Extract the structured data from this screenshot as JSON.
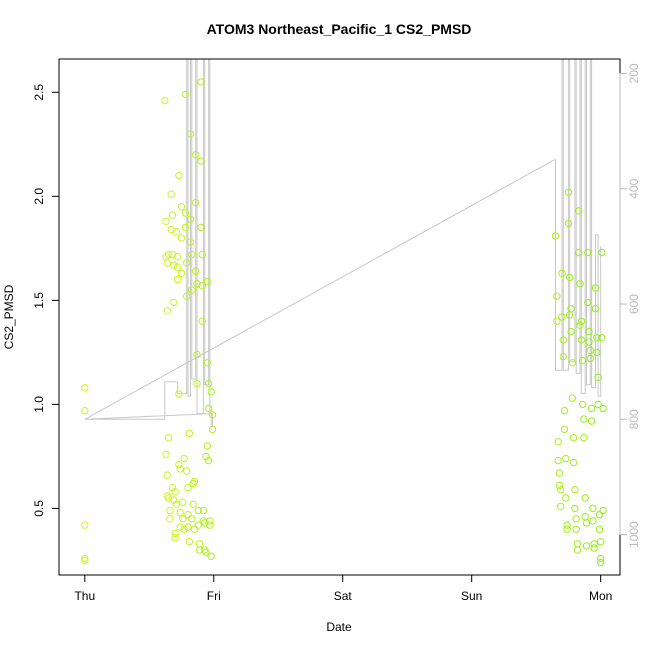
{
  "chart_data": {
    "type": "scatter",
    "title": "ATOM3 Northeast_Pacific_1 CS2_PMSD",
    "xlabel": "Date",
    "ylabel": "CS2_PMSD",
    "x_ticks": [
      {
        "label": "Thu",
        "value": 0
      },
      {
        "label": "Fri",
        "value": 1
      },
      {
        "label": "Sat",
        "value": 2
      },
      {
        "label": "Sun",
        "value": 3
      },
      {
        "label": "Mon",
        "value": 4
      }
    ],
    "xlim": [
      -0.2,
      4.15
    ],
    "ylim": [
      0.18,
      2.66
    ],
    "y_ticks": [
      0.5,
      1.0,
      1.5,
      2.0,
      2.5
    ],
    "y_tick_labels": [
      "0.5",
      "1.0",
      "1.5",
      "2.0",
      "2.5"
    ],
    "right_axis": {
      "label": "",
      "ylim": [
        1070,
        175
      ],
      "ticks": [
        200,
        400,
        600,
        800,
        1000
      ],
      "tick_labels": [
        "200",
        "400",
        "600",
        "800",
        "1000"
      ],
      "color": "#bbbbbb"
    },
    "grid": false,
    "legend": "none",
    "colors": {
      "point_start": "#d4f51f",
      "point_end": "#8ff015",
      "line": "#c8c8c8"
    },
    "series": [
      {
        "points": [
          [
            0.0,
            0.26
          ],
          [
            0.0,
            0.25
          ],
          [
            0.0,
            0.42
          ],
          [
            0.0,
            0.97
          ],
          [
            0.0,
            1.08
          ],
          [
            0.62,
            2.46
          ],
          [
            0.63,
            1.88
          ],
          [
            0.63,
            1.71
          ],
          [
            0.64,
            1.68
          ],
          [
            0.64,
            1.45
          ],
          [
            0.65,
            1.72
          ],
          [
            0.65,
            0.84
          ],
          [
            0.63,
            0.76
          ],
          [
            0.64,
            0.66
          ],
          [
            0.64,
            0.56
          ],
          [
            0.65,
            0.55
          ],
          [
            0.66,
            0.49
          ],
          [
            0.66,
            0.45
          ],
          [
            0.67,
            2.01
          ],
          [
            0.67,
            1.84
          ],
          [
            0.68,
            1.91
          ],
          [
            0.68,
            1.72
          ],
          [
            0.69,
            1.67
          ],
          [
            0.69,
            1.49
          ],
          [
            0.68,
            0.6
          ],
          [
            0.69,
            0.54
          ],
          [
            0.7,
            0.38
          ],
          [
            0.7,
            0.36
          ],
          [
            0.7,
            0.58
          ],
          [
            0.71,
            0.52
          ],
          [
            0.71,
            1.83
          ],
          [
            0.72,
            1.71
          ],
          [
            0.72,
            1.66
          ],
          [
            0.72,
            1.6
          ],
          [
            0.73,
            2.1
          ],
          [
            0.73,
            1.05
          ],
          [
            0.73,
            0.71
          ],
          [
            0.74,
            0.69
          ],
          [
            0.74,
            0.48
          ],
          [
            0.74,
            0.41
          ],
          [
            0.75,
            1.95
          ],
          [
            0.75,
            1.8
          ],
          [
            0.75,
            1.63
          ],
          [
            0.76,
            0.53
          ],
          [
            0.76,
            0.45
          ],
          [
            0.77,
            0.4
          ],
          [
            0.77,
            0.74
          ],
          [
            0.78,
            2.49
          ],
          [
            0.78,
            1.92
          ],
          [
            0.78,
            1.85
          ],
          [
            0.79,
            1.68
          ],
          [
            0.79,
            1.52
          ],
          [
            0.79,
            0.68
          ],
          [
            0.8,
            0.6
          ],
          [
            0.8,
            0.47
          ],
          [
            0.8,
            0.41
          ],
          [
            0.81,
            0.86
          ],
          [
            0.81,
            0.34
          ],
          [
            0.82,
            2.3
          ],
          [
            0.82,
            1.89
          ],
          [
            0.82,
            1.78
          ],
          [
            0.83,
            1.72
          ],
          [
            0.83,
            1.55
          ],
          [
            0.83,
            0.45
          ],
          [
            0.84,
            0.52
          ],
          [
            0.84,
            0.62
          ],
          [
            0.85,
            0.63
          ],
          [
            0.85,
            0.4
          ],
          [
            0.86,
            2.2
          ],
          [
            0.86,
            1.97
          ],
          [
            0.86,
            1.64
          ],
          [
            0.87,
            1.58
          ],
          [
            0.87,
            1.24
          ],
          [
            0.87,
            1.1
          ],
          [
            0.88,
            0.49
          ],
          [
            0.88,
            0.42
          ],
          [
            0.89,
            0.33
          ],
          [
            0.89,
            0.3
          ],
          [
            0.9,
            2.55
          ],
          [
            0.9,
            2.17
          ],
          [
            0.9,
            1.85
          ],
          [
            0.91,
            1.72
          ],
          [
            0.91,
            1.57
          ],
          [
            0.91,
            1.4
          ],
          [
            0.92,
            0.49
          ],
          [
            0.92,
            0.44
          ],
          [
            0.93,
            0.43
          ],
          [
            0.93,
            0.3
          ],
          [
            0.94,
            0.29
          ],
          [
            0.94,
            0.75
          ],
          [
            0.95,
            1.59
          ],
          [
            0.95,
            1.2
          ],
          [
            0.96,
            1.1
          ],
          [
            0.96,
            0.98
          ],
          [
            0.97,
            0.44
          ],
          [
            0.97,
            0.42
          ],
          [
            0.98,
            1.06
          ],
          [
            0.98,
            0.27
          ],
          [
            0.99,
            0.95
          ],
          [
            0.99,
            0.88
          ],
          [
            0.95,
            0.8
          ],
          [
            0.96,
            0.73
          ],
          [
            3.65,
            1.81
          ],
          [
            3.66,
            1.4
          ],
          [
            3.66,
            1.52
          ],
          [
            3.67,
            0.82
          ],
          [
            3.67,
            0.73
          ],
          [
            3.68,
            0.67
          ],
          [
            3.68,
            0.61
          ],
          [
            3.69,
            0.59
          ],
          [
            3.69,
            0.51
          ],
          [
            3.7,
            1.63
          ],
          [
            3.7,
            1.42
          ],
          [
            3.71,
            1.31
          ],
          [
            3.71,
            1.23
          ],
          [
            3.72,
            0.97
          ],
          [
            3.72,
            0.88
          ],
          [
            3.73,
            0.74
          ],
          [
            3.73,
            0.55
          ],
          [
            3.74,
            0.42
          ],
          [
            3.74,
            0.4
          ],
          [
            3.75,
            2.02
          ],
          [
            3.75,
            1.87
          ],
          [
            3.76,
            1.61
          ],
          [
            3.76,
            1.43
          ],
          [
            3.77,
            1.46
          ],
          [
            3.77,
            1.35
          ],
          [
            3.78,
            1.2
          ],
          [
            3.78,
            1.03
          ],
          [
            3.79,
            0.84
          ],
          [
            3.79,
            0.72
          ],
          [
            3.8,
            0.59
          ],
          [
            3.8,
            0.5
          ],
          [
            3.81,
            0.45
          ],
          [
            3.81,
            0.4
          ],
          [
            3.82,
            0.33
          ],
          [
            3.82,
            0.3
          ],
          [
            3.83,
            1.93
          ],
          [
            3.83,
            1.73
          ],
          [
            3.84,
            1.58
          ],
          [
            3.84,
            1.38
          ],
          [
            3.85,
            1.4
          ],
          [
            3.85,
            1.31
          ],
          [
            3.86,
            1.21
          ],
          [
            3.86,
            1.0
          ],
          [
            3.87,
            0.93
          ],
          [
            3.87,
            0.84
          ],
          [
            3.88,
            0.55
          ],
          [
            3.88,
            0.46
          ],
          [
            3.89,
            0.43
          ],
          [
            3.89,
            0.32
          ],
          [
            3.9,
            1.73
          ],
          [
            3.9,
            1.49
          ],
          [
            3.91,
            1.35
          ],
          [
            3.91,
            1.3
          ],
          [
            3.92,
            1.26
          ],
          [
            3.92,
            1.22
          ],
          [
            3.93,
            0.98
          ],
          [
            3.93,
            0.92
          ],
          [
            3.94,
            0.5
          ],
          [
            3.94,
            0.44
          ],
          [
            3.95,
            0.33
          ],
          [
            3.95,
            0.31
          ],
          [
            3.96,
            1.56
          ],
          [
            3.96,
            1.46
          ],
          [
            3.97,
            1.32
          ],
          [
            3.97,
            1.25
          ],
          [
            3.98,
            1.13
          ],
          [
            3.98,
            1.0
          ],
          [
            3.99,
            0.47
          ],
          [
            3.99,
            0.4
          ],
          [
            4.0,
            0.34
          ],
          [
            4.0,
            0.26
          ],
          [
            4.01,
            1.73
          ],
          [
            4.01,
            1.32
          ],
          [
            4.02,
            0.98
          ],
          [
            4.02,
            0.49
          ],
          [
            4.0,
            0.24
          ]
        ]
      }
    ],
    "depth_line_right_units": [
      [
        0.0,
        800
      ],
      [
        0.62,
        800
      ],
      [
        0.62,
        735
      ],
      [
        0.72,
        735
      ],
      [
        0.72,
        755
      ],
      [
        0.79,
        755
      ],
      [
        0.79,
        100
      ],
      [
        0.8,
        100
      ],
      [
        0.8,
        760
      ],
      [
        0.82,
        760
      ],
      [
        0.82,
        100
      ],
      [
        0.83,
        100
      ],
      [
        0.83,
        730
      ],
      [
        0.86,
        730
      ],
      [
        0.86,
        100
      ],
      [
        0.87,
        100
      ],
      [
        0.87,
        790
      ],
      [
        0.92,
        790
      ],
      [
        0.92,
        100
      ],
      [
        0.93,
        100
      ],
      [
        0.93,
        740
      ],
      [
        0.96,
        740
      ],
      [
        0.96,
        100
      ],
      [
        0.97,
        100
      ],
      [
        0.97,
        790
      ],
      [
        0.98,
        790
      ],
      [
        0.98,
        810
      ],
      [
        0.99,
        810
      ],
      [
        0.99,
        790
      ],
      [
        0.0,
        800
      ],
      [
        3.64,
        350
      ],
      [
        3.65,
        350
      ],
      [
        3.65,
        715
      ],
      [
        3.7,
        715
      ],
      [
        3.7,
        100
      ],
      [
        3.71,
        100
      ],
      [
        3.71,
        715
      ],
      [
        3.75,
        715
      ],
      [
        3.75,
        100
      ],
      [
        3.76,
        100
      ],
      [
        3.76,
        700
      ],
      [
        3.8,
        700
      ],
      [
        3.8,
        100
      ],
      [
        3.81,
        100
      ],
      [
        3.81,
        720
      ],
      [
        3.84,
        720
      ],
      [
        3.84,
        100
      ],
      [
        3.85,
        100
      ],
      [
        3.85,
        755
      ],
      [
        3.88,
        755
      ],
      [
        3.88,
        100
      ],
      [
        3.89,
        100
      ],
      [
        3.89,
        740
      ],
      [
        3.92,
        740
      ],
      [
        3.92,
        100
      ],
      [
        3.93,
        100
      ],
      [
        3.93,
        745
      ],
      [
        3.96,
        745
      ],
      [
        3.96,
        480
      ],
      [
        3.98,
        480
      ],
      [
        3.98,
        760
      ],
      [
        4.0,
        760
      ],
      [
        4.0,
        500
      ]
    ]
  }
}
